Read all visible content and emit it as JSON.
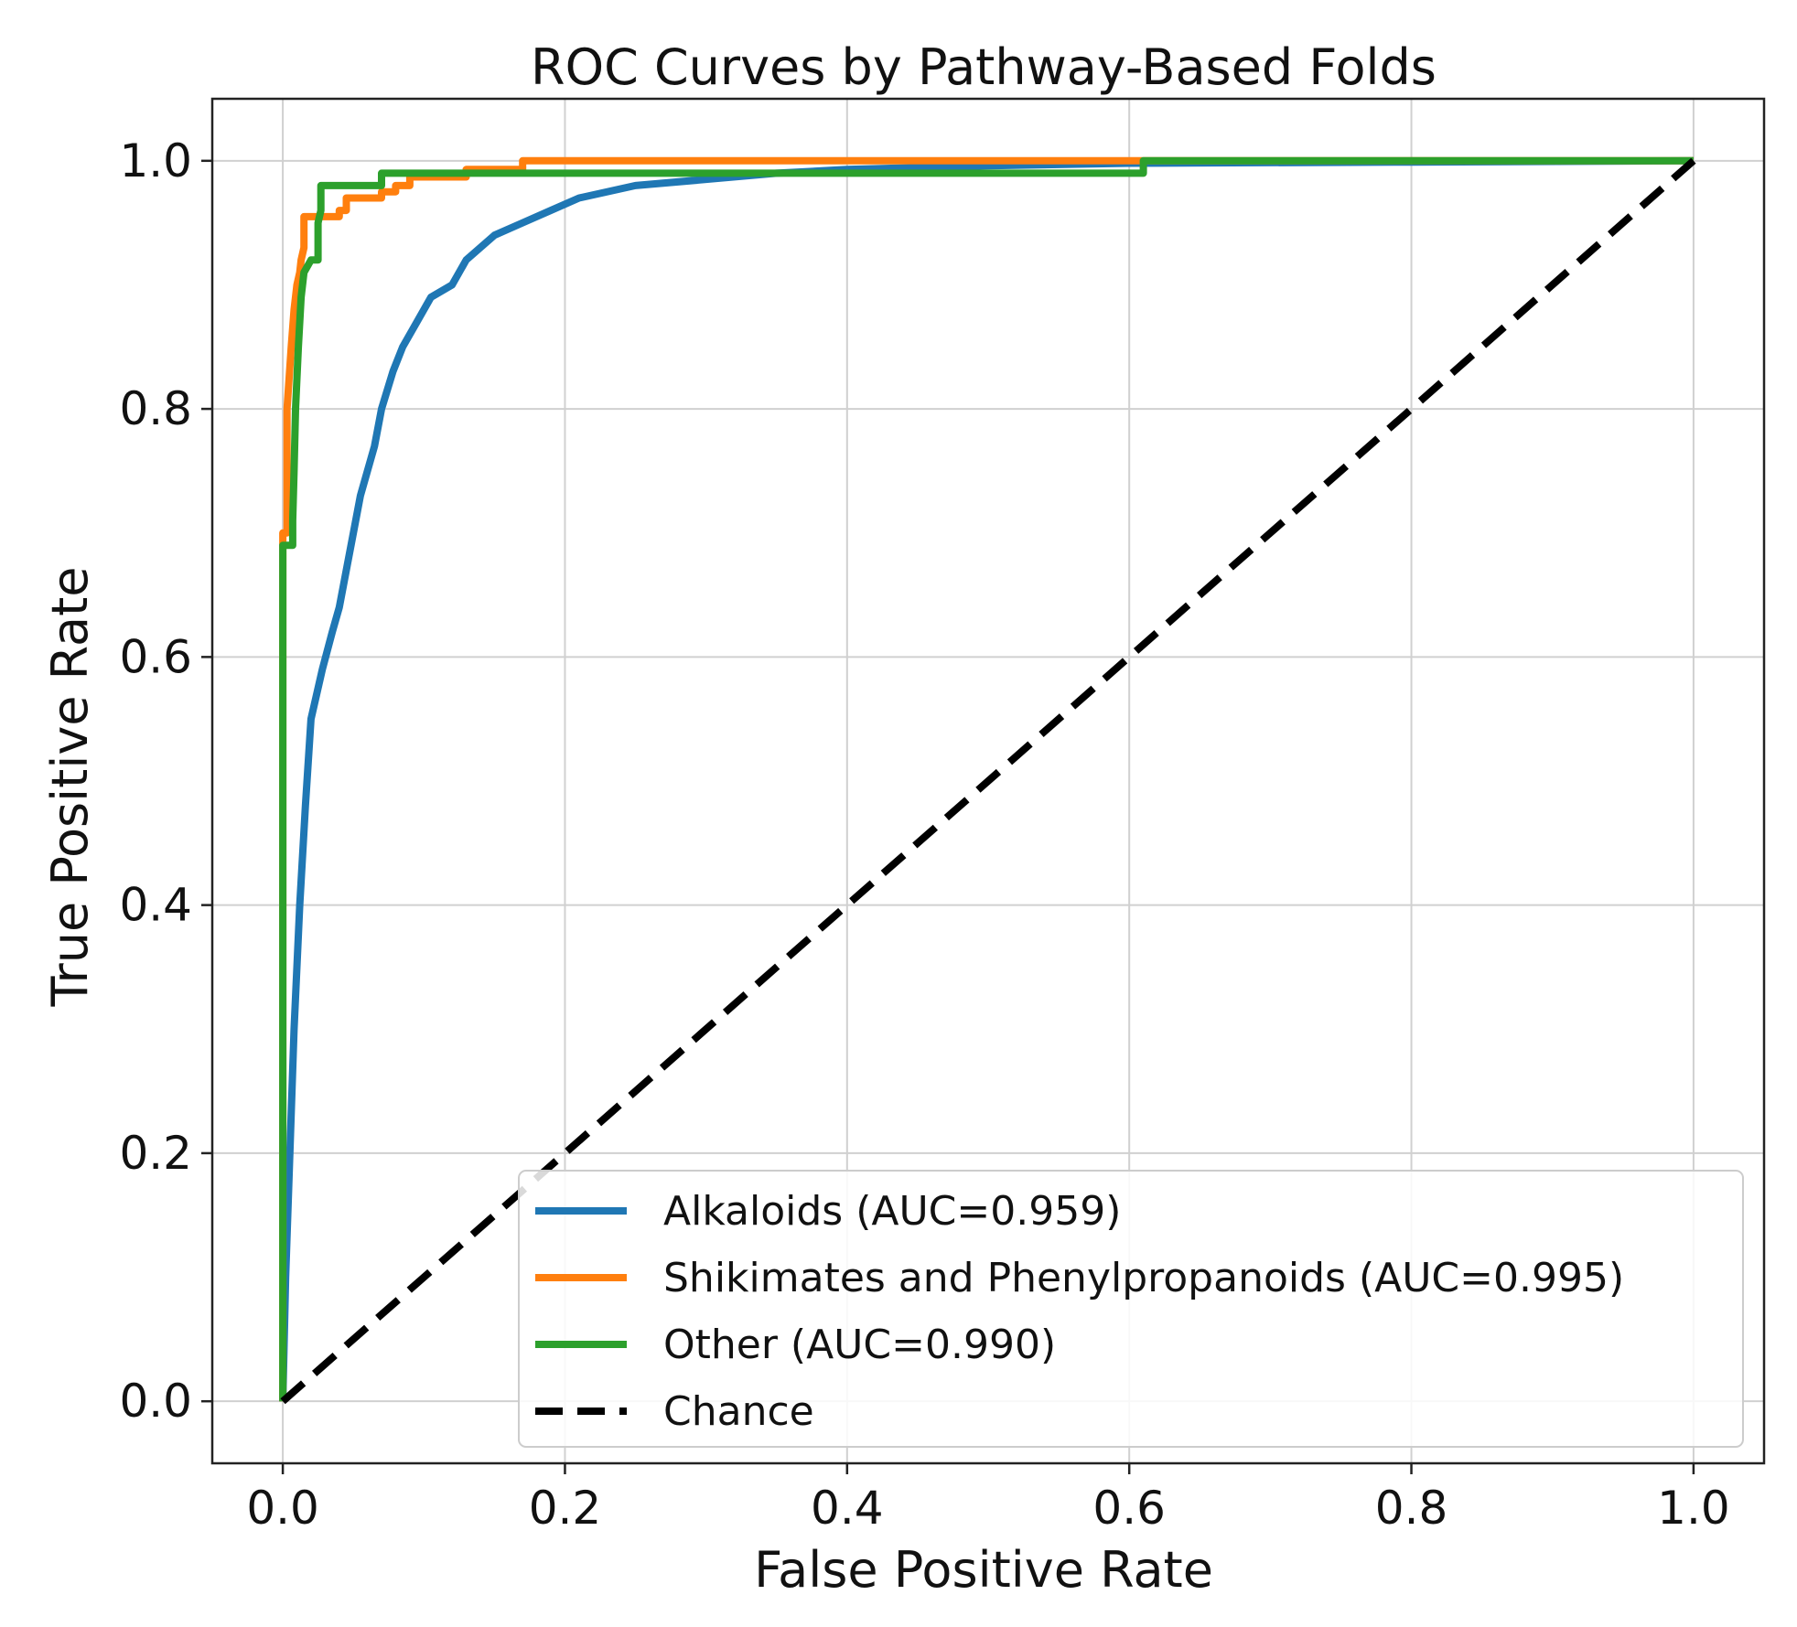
{
  "chart_data": {
    "type": "line",
    "title": "ROC Curves by Pathway-Based Folds",
    "xlabel": "False Positive Rate",
    "ylabel": "True Positive Rate",
    "xlim": [
      -0.05,
      1.05
    ],
    "ylim": [
      -0.05,
      1.05
    ],
    "xticks": [
      "0.0",
      "0.2",
      "0.4",
      "0.6",
      "0.8",
      "1.0"
    ],
    "yticks": [
      "0.0",
      "0.2",
      "0.4",
      "0.6",
      "0.8",
      "1.0"
    ],
    "grid": true,
    "legend_position": "lower-right",
    "series": [
      {
        "name": "Alkaloids (AUC=0.959)",
        "color": "#1f77b4",
        "style": "solid",
        "points": [
          [
            0,
            0
          ],
          [
            0.002,
            0.1
          ],
          [
            0.005,
            0.2
          ],
          [
            0.008,
            0.3
          ],
          [
            0.012,
            0.4
          ],
          [
            0.016,
            0.48
          ],
          [
            0.02,
            0.55
          ],
          [
            0.028,
            0.59
          ],
          [
            0.035,
            0.62
          ],
          [
            0.04,
            0.64
          ],
          [
            0.045,
            0.67
          ],
          [
            0.05,
            0.7
          ],
          [
            0.055,
            0.73
          ],
          [
            0.06,
            0.75
          ],
          [
            0.065,
            0.77
          ],
          [
            0.07,
            0.8
          ],
          [
            0.078,
            0.83
          ],
          [
            0.085,
            0.85
          ],
          [
            0.095,
            0.87
          ],
          [
            0.105,
            0.89
          ],
          [
            0.12,
            0.9
          ],
          [
            0.13,
            0.92
          ],
          [
            0.15,
            0.94
          ],
          [
            0.17,
            0.95
          ],
          [
            0.19,
            0.96
          ],
          [
            0.21,
            0.97
          ],
          [
            0.25,
            0.98
          ],
          [
            0.3,
            0.985
          ],
          [
            0.35,
            0.99
          ],
          [
            0.4,
            0.993
          ],
          [
            0.5,
            0.996
          ],
          [
            0.6,
            0.998
          ],
          [
            0.8,
            0.999
          ],
          [
            1.0,
            1.0
          ]
        ]
      },
      {
        "name": "Shikimates and Phenylpropanoids (AUC=0.995)",
        "color": "#ff7f0e",
        "style": "solid",
        "points": [
          [
            0,
            0
          ],
          [
            0,
            0.7
          ],
          [
            0.003,
            0.7
          ],
          [
            0.003,
            0.8
          ],
          [
            0.006,
            0.85
          ],
          [
            0.008,
            0.88
          ],
          [
            0.01,
            0.9
          ],
          [
            0.012,
            0.91
          ],
          [
            0.013,
            0.92
          ],
          [
            0.015,
            0.93
          ],
          [
            0.015,
            0.955
          ],
          [
            0.04,
            0.955
          ],
          [
            0.04,
            0.96
          ],
          [
            0.045,
            0.96
          ],
          [
            0.045,
            0.97
          ],
          [
            0.07,
            0.97
          ],
          [
            0.07,
            0.975
          ],
          [
            0.08,
            0.975
          ],
          [
            0.08,
            0.98
          ],
          [
            0.09,
            0.98
          ],
          [
            0.09,
            0.987
          ],
          [
            0.13,
            0.987
          ],
          [
            0.13,
            0.993
          ],
          [
            0.17,
            0.993
          ],
          [
            0.17,
            1.0
          ],
          [
            0.61,
            1.0
          ],
          [
            1.0,
            1.0
          ]
        ]
      },
      {
        "name": "Other (AUC=0.990)",
        "color": "#2ca02c",
        "style": "solid",
        "points": [
          [
            0,
            0
          ],
          [
            0,
            0.69
          ],
          [
            0.007,
            0.69
          ],
          [
            0.007,
            0.71
          ],
          [
            0.008,
            0.75
          ],
          [
            0.009,
            0.8
          ],
          [
            0.011,
            0.85
          ],
          [
            0.013,
            0.89
          ],
          [
            0.015,
            0.91
          ],
          [
            0.02,
            0.92
          ],
          [
            0.025,
            0.92
          ],
          [
            0.025,
            0.95
          ],
          [
            0.027,
            0.96
          ],
          [
            0.027,
            0.98
          ],
          [
            0.07,
            0.98
          ],
          [
            0.07,
            0.99
          ],
          [
            0.61,
            0.99
          ],
          [
            0.61,
            1.0
          ],
          [
            1.0,
            1.0
          ]
        ]
      },
      {
        "name": "Chance",
        "color": "#000000",
        "style": "dashed",
        "points": [
          [
            0,
            0
          ],
          [
            1,
            1
          ]
        ]
      }
    ]
  }
}
